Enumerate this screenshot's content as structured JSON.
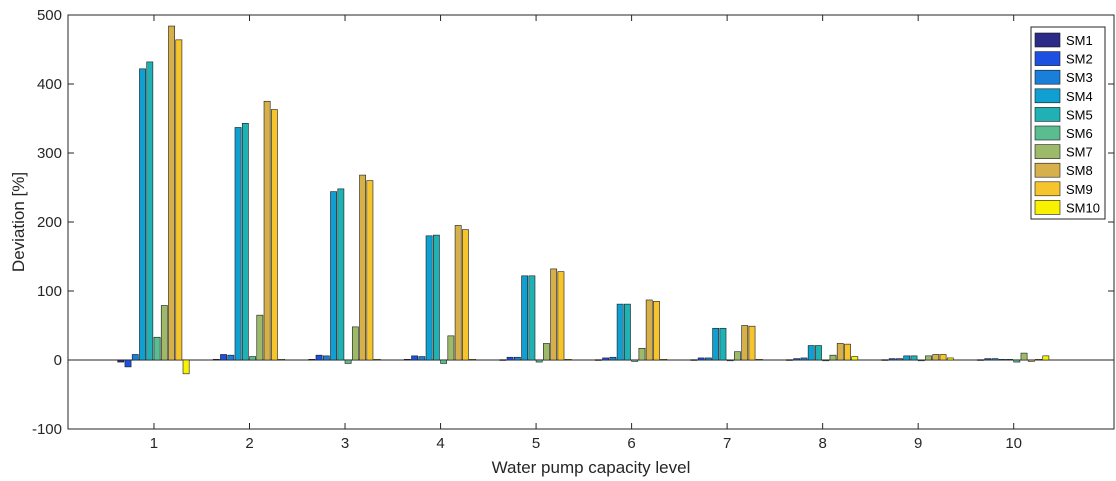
{
  "chart_data": {
    "type": "bar",
    "xlabel": "Water pump capacity level",
    "ylabel": "Deviation [%]",
    "ylim": [
      -100,
      500
    ],
    "yticks": [
      -100,
      0,
      100,
      200,
      300,
      400,
      500
    ],
    "categories": [
      "1",
      "2",
      "3",
      "4",
      "5",
      "6",
      "7",
      "8",
      "9",
      "10"
    ],
    "grid": false,
    "legend_position": "top-right",
    "series": [
      {
        "name": "SM1",
        "color": "#2b2a86",
        "values": [
          -3,
          1,
          1,
          1,
          0.5,
          0.5,
          0.5,
          0.5,
          0.5,
          0.5
        ]
      },
      {
        "name": "SM2",
        "color": "#1d50e0",
        "values": [
          -10,
          8,
          7,
          6,
          4,
          3,
          3,
          2,
          2,
          2
        ]
      },
      {
        "name": "SM3",
        "color": "#1a7fd8",
        "values": [
          8,
          7,
          6,
          5,
          4,
          4,
          3,
          3,
          2,
          2
        ]
      },
      {
        "name": "SM4",
        "color": "#0f9fd1",
        "values": [
          422,
          337,
          244,
          180,
          122,
          81,
          46,
          21,
          6,
          1
        ]
      },
      {
        "name": "SM5",
        "color": "#1fb1b3",
        "values": [
          432,
          343,
          248,
          181,
          122,
          81,
          46,
          21,
          6,
          1
        ]
      },
      {
        "name": "SM6",
        "color": "#5bbd8f",
        "values": [
          33,
          5,
          -5,
          -5,
          -3,
          -2,
          -1,
          -1,
          -1,
          -3
        ]
      },
      {
        "name": "SM7",
        "color": "#9cba6a",
        "values": [
          79,
          65,
          48,
          35,
          24,
          17,
          12,
          7,
          6,
          10
        ]
      },
      {
        "name": "SM8",
        "color": "#d6b04a",
        "values": [
          484,
          375,
          268,
          195,
          132,
          87,
          50,
          24,
          8,
          -2
        ]
      },
      {
        "name": "SM9",
        "color": "#f6c52e",
        "values": [
          464,
          363,
          260,
          189,
          128,
          85,
          49,
          23,
          8,
          1
        ]
      },
      {
        "name": "SM10",
        "color": "#f8f200",
        "values": [
          -20,
          1,
          1,
          1,
          1,
          1,
          1,
          5,
          3,
          6
        ]
      }
    ]
  }
}
